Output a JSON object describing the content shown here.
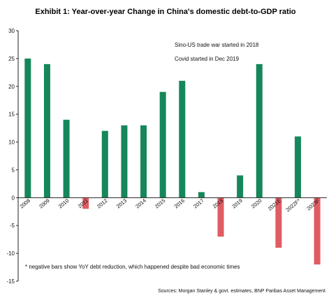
{
  "title": "Exhibit 1: Year-over-year Change in China's domestic debt-to-GDP ratio",
  "annotations": [
    "Sino-US trade war started in 2018",
    "Covid started in Dec 2019"
  ],
  "footnote": "* negative bars show YoY debt reduction, which happened despite bad economic times",
  "source": "Sources: Morgan Stanley & govt. estimates, BNP Paribas Asset Management",
  "colors": {
    "positive": "#16875a",
    "negative": "#e05c63"
  },
  "chart_data": {
    "type": "bar",
    "categories": [
      "2008",
      "2009",
      "2010",
      "2011",
      "2012",
      "2013",
      "2014",
      "2015",
      "2016",
      "2017",
      "2018",
      "2019",
      "2020",
      "2021E",
      "2022F*",
      "2023F"
    ],
    "values": [
      25,
      24,
      14,
      -2,
      12,
      13,
      13,
      19,
      21,
      1,
      -7,
      4,
      24,
      -9,
      11,
      -12
    ],
    "ylim": [
      -15,
      30
    ],
    "yticks": [
      -15,
      -10,
      -5,
      0,
      5,
      10,
      15,
      20,
      25,
      30
    ],
    "ytick_labels": [
      "-15",
      "-10",
      "-5",
      "0",
      "5",
      "10",
      "15",
      "20",
      "25",
      "30"
    ],
    "xlabel": "",
    "ylabel": "",
    "legend": "none",
    "grid": false
  }
}
